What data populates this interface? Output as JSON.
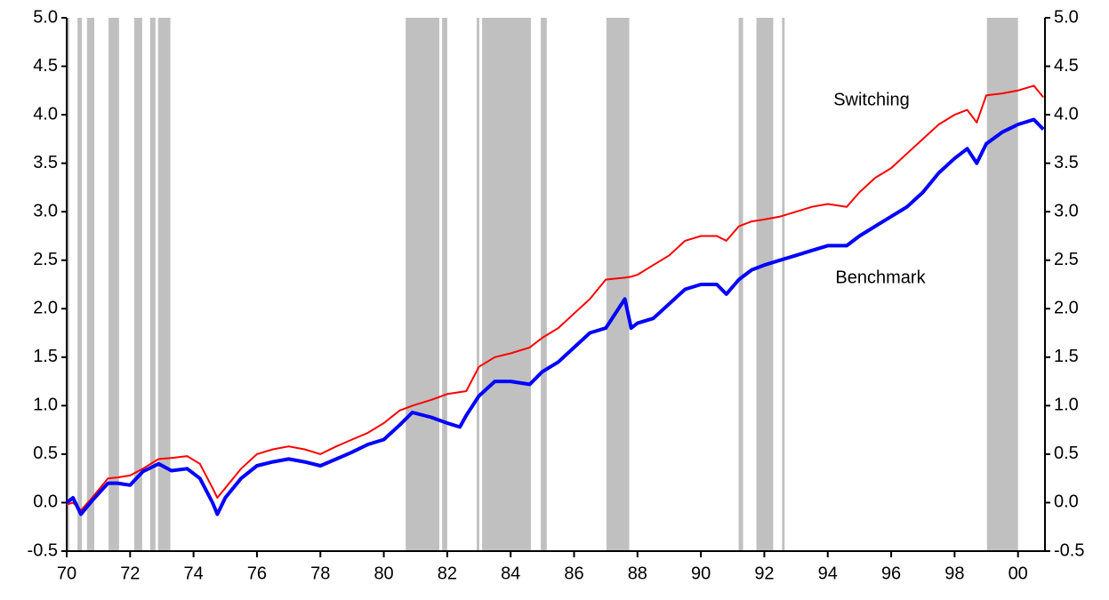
{
  "chart_data": {
    "type": "line",
    "x": [
      1970.0,
      1970.2,
      1970.45,
      1970.8,
      1971.3,
      1971.6,
      1972.0,
      1972.4,
      1972.9,
      1973.3,
      1973.8,
      1974.2,
      1974.6,
      1974.75,
      1975.0,
      1975.5,
      1976.0,
      1976.5,
      1977.0,
      1977.5,
      1978.0,
      1978.5,
      1979.0,
      1979.5,
      1980.0,
      1980.5,
      1980.9,
      1981.5,
      1982.0,
      1982.4,
      1982.6,
      1983.0,
      1983.5,
      1984.0,
      1984.6,
      1985.0,
      1985.5,
      1986.0,
      1986.5,
      1987.0,
      1987.6,
      1987.8,
      1988.0,
      1988.5,
      1989.0,
      1989.5,
      1990.0,
      1990.5,
      1990.8,
      1991.2,
      1991.6,
      1992.0,
      1992.5,
      1993.0,
      1993.5,
      1994.0,
      1994.6,
      1995.0,
      1995.5,
      1996.0,
      1996.5,
      1997.0,
      1997.5,
      1998.0,
      1998.4,
      1998.7,
      1999.0,
      1999.5,
      2000.0,
      2000.5,
      2000.8
    ],
    "series": [
      {
        "name": "Switching",
        "color": "#ff0000",
        "width": 2,
        "values": [
          -0.02,
          0.0,
          -0.08,
          0.05,
          0.25,
          0.26,
          0.28,
          0.35,
          0.45,
          0.46,
          0.48,
          0.4,
          0.15,
          0.05,
          0.15,
          0.35,
          0.5,
          0.55,
          0.58,
          0.55,
          0.5,
          0.58,
          0.65,
          0.72,
          0.82,
          0.95,
          1.0,
          1.06,
          1.12,
          1.14,
          1.15,
          1.4,
          1.5,
          1.54,
          1.6,
          1.7,
          1.8,
          1.95,
          2.1,
          2.3,
          2.32,
          2.33,
          2.35,
          2.45,
          2.55,
          2.7,
          2.75,
          2.75,
          2.7,
          2.85,
          2.9,
          2.92,
          2.95,
          3.0,
          3.05,
          3.08,
          3.05,
          3.2,
          3.35,
          3.45,
          3.6,
          3.75,
          3.9,
          4.0,
          4.05,
          3.92,
          4.2,
          4.22,
          4.25,
          4.3,
          4.18
        ]
      },
      {
        "name": "Benchmark",
        "color": "#0000ff",
        "width": 4,
        "values": [
          0.0,
          0.05,
          -0.12,
          0.02,
          0.2,
          0.2,
          0.18,
          0.32,
          0.4,
          0.33,
          0.35,
          0.25,
          0.0,
          -0.12,
          0.05,
          0.25,
          0.38,
          0.42,
          0.45,
          0.42,
          0.38,
          0.45,
          0.52,
          0.6,
          0.65,
          0.8,
          0.93,
          0.88,
          0.82,
          0.78,
          0.9,
          1.1,
          1.25,
          1.25,
          1.22,
          1.35,
          1.45,
          1.6,
          1.75,
          1.8,
          2.1,
          1.8,
          1.85,
          1.9,
          2.05,
          2.2,
          2.25,
          2.25,
          2.15,
          2.3,
          2.4,
          2.45,
          2.5,
          2.55,
          2.6,
          2.65,
          2.65,
          2.75,
          2.85,
          2.95,
          3.05,
          3.2,
          3.4,
          3.55,
          3.65,
          3.5,
          3.7,
          3.82,
          3.9,
          3.95,
          3.85
        ]
      }
    ],
    "shaded_periods": [
      [
        1970.0,
        1970.08
      ],
      [
        1970.34,
        1970.48
      ],
      [
        1970.64,
        1970.87
      ],
      [
        1971.32,
        1971.65
      ],
      [
        1972.13,
        1972.38
      ],
      [
        1972.63,
        1972.8
      ],
      [
        1972.88,
        1973.27
      ],
      [
        1980.69,
        1981.75
      ],
      [
        1981.84,
        1982.0
      ],
      [
        1982.93,
        1983.01
      ],
      [
        1983.1,
        1984.64
      ],
      [
        1984.95,
        1985.14
      ],
      [
        1987.02,
        1987.74
      ],
      [
        1991.19,
        1991.33
      ],
      [
        1991.75,
        1992.28
      ],
      [
        1992.56,
        1992.64
      ],
      [
        1999.02,
        2000.0
      ]
    ],
    "shade_color": "#c0c0c0",
    "xlim": [
      1970,
      2000.85
    ],
    "xticks": [
      {
        "value": 1970,
        "label": "70"
      },
      {
        "value": 1972,
        "label": "72"
      },
      {
        "value": 1974,
        "label": "74"
      },
      {
        "value": 1976,
        "label": "76"
      },
      {
        "value": 1978,
        "label": "78"
      },
      {
        "value": 1980,
        "label": "80"
      },
      {
        "value": 1982,
        "label": "82"
      },
      {
        "value": 1984,
        "label": "84"
      },
      {
        "value": 1986,
        "label": "86"
      },
      {
        "value": 1988,
        "label": "88"
      },
      {
        "value": 1990,
        "label": "90"
      },
      {
        "value": 1992,
        "label": "92"
      },
      {
        "value": 1994,
        "label": "94"
      },
      {
        "value": 1996,
        "label": "96"
      },
      {
        "value": 1998,
        "label": "98"
      },
      {
        "value": 2000,
        "label": "00"
      }
    ],
    "ylim": [
      -0.5,
      5.0
    ],
    "yticks": [
      -0.5,
      {
        "value": 0,
        "label": "0.0"
      },
      0.5,
      {
        "value": 1,
        "label": "1.0"
      },
      1.5,
      {
        "value": 2,
        "label": "2.0"
      },
      2.5,
      {
        "value": 3,
        "label": "3.0"
      },
      3.5,
      {
        "value": 4,
        "label": "4.0"
      },
      4.5,
      {
        "value": 5,
        "label": "5.0"
      }
    ],
    "y2lim": [
      -0.5,
      5.0
    ],
    "y2ticks": [
      -0.5,
      {
        "value": 0,
        "label": "0.0"
      },
      0.5,
      {
        "value": 1,
        "label": "1.0"
      },
      1.5,
      {
        "value": 2,
        "label": "2.0"
      },
      2.5,
      {
        "value": 3,
        "label": "3.0"
      },
      3.5,
      {
        "value": 4,
        "label": "4.0"
      },
      4.5,
      {
        "value": 5,
        "label": "5.0"
      }
    ],
    "annotations": [
      "Switching",
      "Benchmark"
    ]
  }
}
